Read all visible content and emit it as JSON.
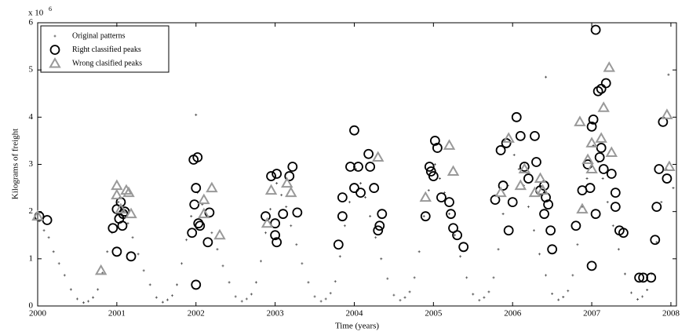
{
  "chart_data": {
    "type": "scatter",
    "x_label": "Time (years)",
    "y_label": "Kilograms of freight",
    "y_scale_label": "x 10",
    "y_scale_exponent": "6",
    "xlim": [
      2000,
      2008.07
    ],
    "xticks": [
      2000,
      2001,
      2002,
      2003,
      2004,
      2005,
      2006,
      2007,
      2008
    ],
    "ylim": [
      0,
      6
    ],
    "yticks": [
      0,
      1,
      2,
      3,
      4,
      5,
      6
    ],
    "legend": "top-left",
    "series": [
      {
        "name": "Original patterns",
        "marker": "plus",
        "color": "#444444",
        "x": [
          2000.02,
          2000.08,
          2000.14,
          2000.2,
          2000.27,
          2000.34,
          2000.42,
          2000.5,
          2000.58,
          2000.64,
          2000.7,
          2000.76,
          2000.82,
          2000.88,
          2000.94,
          2001.02,
          2001.08,
          2001.14,
          2001.2,
          2001.27,
          2001.34,
          2001.42,
          2001.5,
          2001.58,
          2001.64,
          2001.7,
          2001.76,
          2001.82,
          2001.88,
          2001.94,
          2002.02,
          2002.08,
          2002.14,
          2002.2,
          2002.27,
          2002.34,
          2002.42,
          2002.5,
          2002.58,
          2002.64,
          2002.7,
          2002.76,
          2002.82,
          2002.88,
          2002.94,
          2003.02,
          2003.08,
          2003.14,
          2003.2,
          2003.27,
          2003.34,
          2003.42,
          2003.5,
          2003.58,
          2003.64,
          2003.7,
          2003.76,
          2003.82,
          2003.88,
          2003.94,
          2004.02,
          2004.08,
          2004.14,
          2004.2,
          2004.27,
          2004.34,
          2004.42,
          2004.5,
          2004.58,
          2004.64,
          2004.7,
          2004.76,
          2004.82,
          2004.88,
          2004.94,
          2005.02,
          2005.08,
          2005.14,
          2005.2,
          2005.27,
          2005.34,
          2005.42,
          2005.5,
          2005.58,
          2005.64,
          2005.7,
          2005.76,
          2005.82,
          2005.88,
          2005.94,
          2006.02,
          2006.08,
          2006.14,
          2006.2,
          2006.27,
          2006.34,
          2006.42,
          2006.5,
          2006.58,
          2006.64,
          2006.7,
          2006.76,
          2006.82,
          2006.88,
          2006.94,
          2007.02,
          2007.08,
          2007.14,
          2007.2,
          2007.27,
          2007.34,
          2007.42,
          2007.5,
          2007.58,
          2007.64,
          2007.7,
          2007.76,
          2007.82,
          2007.88,
          2007.94,
          2002.0,
          2006.42,
          2007.97,
          2008.03
        ],
        "values": [
          1.8,
          1.6,
          1.45,
          1.15,
          0.9,
          0.65,
          0.35,
          0.15,
          0.07,
          0.1,
          0.18,
          0.35,
          0.7,
          1.15,
          1.55,
          2.2,
          2.0,
          1.75,
          1.45,
          1.1,
          0.75,
          0.45,
          0.18,
          0.08,
          0.13,
          0.22,
          0.45,
          0.9,
          1.4,
          1.9,
          2.4,
          2.15,
          1.9,
          1.55,
          1.2,
          0.85,
          0.5,
          0.2,
          0.1,
          0.15,
          0.25,
          0.5,
          0.95,
          1.55,
          2.05,
          2.6,
          2.35,
          2.1,
          1.7,
          1.3,
          0.9,
          0.5,
          0.2,
          0.1,
          0.15,
          0.27,
          0.52,
          1.05,
          1.7,
          2.2,
          2.9,
          2.6,
          2.3,
          1.9,
          1.45,
          1.0,
          0.58,
          0.23,
          0.12,
          0.18,
          0.3,
          0.6,
          1.15,
          1.9,
          2.45,
          3.0,
          2.7,
          2.4,
          1.95,
          1.5,
          1.05,
          0.6,
          0.25,
          0.12,
          0.18,
          0.3,
          0.6,
          1.2,
          1.95,
          2.55,
          3.2,
          2.9,
          2.55,
          2.1,
          1.6,
          1.1,
          0.65,
          0.26,
          0.13,
          0.19,
          0.32,
          0.65,
          1.3,
          2.1,
          2.7,
          3.4,
          3.05,
          2.7,
          2.2,
          1.7,
          1.2,
          0.68,
          0.28,
          0.14,
          0.2,
          0.34,
          0.68,
          1.35,
          2.2,
          2.9,
          4.05,
          4.85,
          4.9,
          2.5
        ]
      },
      {
        "name": "Right classified peaks",
        "marker": "circle",
        "color": "#000000",
        "x": [
          2000.02,
          2000.12,
          2000.95,
          2001.0,
          2001.0,
          2001.03,
          2001.05,
          2001.07,
          2001.08,
          2001.1,
          2001.18,
          2001.95,
          2001.97,
          2002.02,
          2002.0,
          2001.98,
          2002.03,
          2002.05,
          2002.15,
          2002.17,
          2002.0,
          2002.88,
          2002.95,
          2003.02,
          2003.0,
          2003.0,
          2003.02,
          2003.1,
          2003.18,
          2003.22,
          2003.28,
          2003.8,
          2003.85,
          2003.85,
          2003.95,
          2004.0,
          2004.05,
          2004.0,
          2004.08,
          2004.18,
          2004.2,
          2004.25,
          2004.3,
          2004.35,
          2004.32,
          2004.9,
          2004.95,
          2004.97,
          2005.0,
          2005.02,
          2005.05,
          2005.1,
          2005.2,
          2005.25,
          2005.22,
          2005.3,
          2005.38,
          2005.78,
          2005.85,
          2005.88,
          2005.92,
          2005.95,
          2006.0,
          2006.05,
          2006.1,
          2006.15,
          2006.2,
          2006.28,
          2006.3,
          2006.35,
          2006.4,
          2006.42,
          2006.45,
          2006.4,
          2006.48,
          2006.5,
          2006.8,
          2006.88,
          2006.95,
          2006.98,
          2007.0,
          2007.02,
          2007.05,
          2007.08,
          2007.12,
          2007.18,
          2007.12,
          2007.15,
          2007.1,
          2007.0,
          2007.05,
          2007.25,
          2007.3,
          2007.3,
          2007.35,
          2007.4,
          2007.6,
          2007.65,
          2007.75,
          2007.8,
          2007.82,
          2007.85,
          2007.9,
          2007.95
        ],
        "values": [
          1.9,
          1.82,
          1.65,
          1.15,
          2.05,
          1.85,
          2.2,
          1.7,
          1.95,
          2.0,
          1.05,
          1.55,
          3.1,
          3.15,
          2.5,
          2.15,
          1.75,
          1.7,
          1.35,
          1.98,
          0.45,
          1.9,
          2.75,
          2.8,
          1.75,
          1.5,
          1.35,
          1.95,
          2.75,
          2.95,
          1.98,
          1.3,
          1.9,
          2.3,
          2.95,
          3.72,
          2.95,
          2.5,
          2.4,
          3.22,
          2.95,
          2.5,
          1.6,
          1.95,
          1.7,
          1.9,
          2.95,
          2.85,
          2.75,
          3.5,
          3.35,
          2.3,
          2.2,
          1.65,
          1.95,
          1.5,
          1.25,
          2.25,
          3.3,
          2.55,
          3.45,
          1.6,
          2.2,
          4.0,
          3.6,
          2.95,
          2.7,
          3.6,
          3.05,
          2.45,
          2.55,
          2.3,
          2.15,
          1.95,
          1.6,
          1.2,
          1.7,
          2.45,
          3.0,
          2.5,
          3.8,
          3.95,
          5.85,
          4.55,
          4.6,
          4.72,
          3.35,
          2.9,
          3.15,
          0.85,
          1.95,
          2.8,
          2.4,
          2.1,
          1.6,
          1.55,
          0.6,
          0.6,
          0.6,
          1.4,
          2.1,
          2.9,
          3.9,
          2.7
        ]
      },
      {
        "name": "Wrong clasified peaks",
        "marker": "triangle",
        "color": "#999999",
        "x": [
          2000.0,
          2000.8,
          2001.0,
          2001.0,
          2001.05,
          2001.12,
          2001.15,
          2001.18,
          2002.1,
          2002.1,
          2002.2,
          2002.3,
          2002.9,
          2002.95,
          2003.15,
          2003.2,
          2004.3,
          2004.9,
          2005.2,
          2005.25,
          2005.85,
          2005.95,
          2006.1,
          2006.15,
          2006.28,
          2006.35,
          2006.38,
          2006.85,
          2006.88,
          2006.95,
          2007.0,
          2007.12,
          2007.15,
          2007.22,
          2007.25,
          2007.0,
          2007.95,
          2007.98
        ],
        "values": [
          1.9,
          0.75,
          2.55,
          2.35,
          2.05,
          2.45,
          2.4,
          1.95,
          2.25,
          1.95,
          2.5,
          1.5,
          1.75,
          2.45,
          2.6,
          2.4,
          3.15,
          2.3,
          3.4,
          2.85,
          2.4,
          3.55,
          2.55,
          2.9,
          2.4,
          2.7,
          2.45,
          3.9,
          2.05,
          3.1,
          3.45,
          3.55,
          4.2,
          5.05,
          3.25,
          2.9,
          4.05,
          2.95
        ]
      }
    ]
  }
}
